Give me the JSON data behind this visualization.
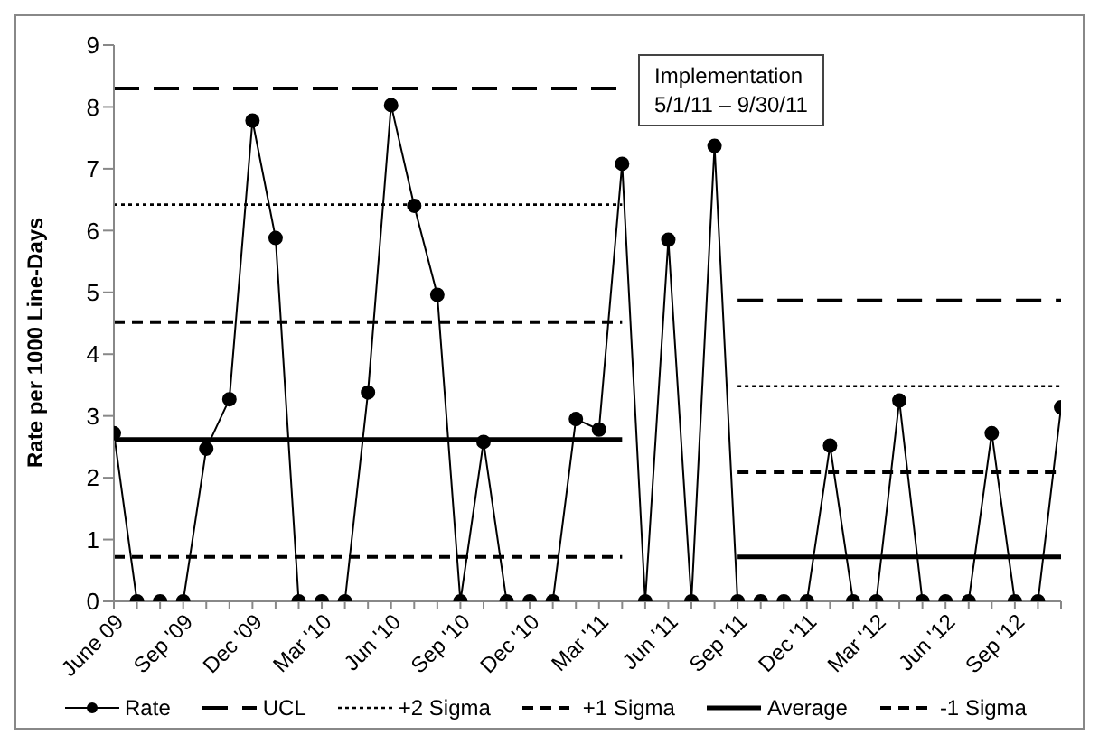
{
  "chart_data": {
    "type": "line",
    "ylabel": "Rate per 1000 Line-Days",
    "categories": [
      "June 09",
      null,
      null,
      "Sep '09",
      null,
      null,
      "Dec '09",
      null,
      null,
      "Mar '10",
      null,
      null,
      "Jun '10",
      null,
      null,
      "Sep '10",
      null,
      null,
      "Dec '10",
      null,
      null,
      "Mar '11",
      null,
      null,
      "Jun '11",
      null,
      null,
      "Sep '11",
      null,
      null,
      "Dec '11",
      null,
      null,
      "Mar '12",
      null,
      null,
      "Jun '12",
      null,
      null,
      "Sep '12",
      null,
      null
    ],
    "series": [
      {
        "name": "Rate",
        "color": "#000000",
        "marker": "circle",
        "line_style": "solid",
        "values": [
          2.72,
          0,
          0,
          0,
          2.47,
          3.27,
          7.78,
          5.88,
          0,
          0,
          0,
          3.38,
          8.03,
          6.4,
          4.96,
          0,
          2.58,
          0,
          0,
          0,
          2.95,
          2.78,
          7.08,
          0,
          5.85,
          0,
          7.37,
          0,
          0,
          0,
          0,
          2.52,
          0,
          0,
          3.25,
          0,
          0,
          0,
          2.72,
          0,
          0,
          3.14
        ]
      },
      {
        "name": "UCL",
        "color": "#000000",
        "marker": "none",
        "line_style": "longdash",
        "values": [
          8.3,
          8.3,
          8.3,
          8.3,
          8.3,
          8.3,
          8.3,
          8.3,
          8.3,
          8.3,
          8.3,
          8.3,
          8.3,
          8.3,
          8.3,
          8.3,
          8.3,
          8.3,
          8.3,
          8.3,
          8.3,
          8.3,
          8.3,
          null,
          null,
          null,
          null,
          4.87,
          4.87,
          4.87,
          4.87,
          4.87,
          4.87,
          4.87,
          4.87,
          4.87,
          4.87,
          4.87,
          4.87,
          4.87,
          4.87,
          4.87
        ]
      },
      {
        "name": "+2 Sigma",
        "color": "#000000",
        "marker": "none",
        "line_style": "dotted",
        "values": [
          6.42,
          6.42,
          6.42,
          6.42,
          6.42,
          6.42,
          6.42,
          6.42,
          6.42,
          6.42,
          6.42,
          6.42,
          6.42,
          6.42,
          6.42,
          6.42,
          6.42,
          6.42,
          6.42,
          6.42,
          6.42,
          6.42,
          6.42,
          null,
          null,
          null,
          null,
          3.48,
          3.48,
          3.48,
          3.48,
          3.48,
          3.48,
          3.48,
          3.48,
          3.48,
          3.48,
          3.48,
          3.48,
          3.48,
          3.48,
          3.48
        ]
      },
      {
        "name": "+1 Sigma",
        "color": "#000000",
        "marker": "none",
        "line_style": "dashed",
        "values": [
          4.52,
          4.52,
          4.52,
          4.52,
          4.52,
          4.52,
          4.52,
          4.52,
          4.52,
          4.52,
          4.52,
          4.52,
          4.52,
          4.52,
          4.52,
          4.52,
          4.52,
          4.52,
          4.52,
          4.52,
          4.52,
          4.52,
          4.52,
          null,
          null,
          null,
          null,
          2.09,
          2.09,
          2.09,
          2.09,
          2.09,
          2.09,
          2.09,
          2.09,
          2.09,
          2.09,
          2.09,
          2.09,
          2.09,
          2.09,
          2.09
        ]
      },
      {
        "name": "Average",
        "color": "#000000",
        "marker": "none",
        "line_style": "solid",
        "values": [
          2.62,
          2.62,
          2.62,
          2.62,
          2.62,
          2.62,
          2.62,
          2.62,
          2.62,
          2.62,
          2.62,
          2.62,
          2.62,
          2.62,
          2.62,
          2.62,
          2.62,
          2.62,
          2.62,
          2.62,
          2.62,
          2.62,
          2.62,
          null,
          null,
          null,
          null,
          0.72,
          0.72,
          0.72,
          0.72,
          0.72,
          0.72,
          0.72,
          0.72,
          0.72,
          0.72,
          0.72,
          0.72,
          0.72,
          0.72,
          0.72
        ]
      },
      {
        "name": "-1 Sigma",
        "color": "#000000",
        "marker": "none",
        "line_style": "dashed",
        "values": [
          0.72,
          0.72,
          0.72,
          0.72,
          0.72,
          0.72,
          0.72,
          0.72,
          0.72,
          0.72,
          0.72,
          0.72,
          0.72,
          0.72,
          0.72,
          0.72,
          0.72,
          0.72,
          0.72,
          0.72,
          0.72,
          0.72,
          0.72,
          null,
          null,
          null,
          null,
          null,
          null,
          null,
          null,
          null,
          null,
          null,
          null,
          null,
          null,
          null,
          null,
          null,
          null,
          null
        ]
      }
    ],
    "ylim": [
      0,
      9
    ],
    "yticks": [
      0,
      1,
      2,
      3,
      4,
      5,
      6,
      7,
      8,
      9
    ],
    "grid": false,
    "legend": "bottom",
    "annotations": [
      "Implementation\n5/1/11 – 9/30/11"
    ]
  }
}
